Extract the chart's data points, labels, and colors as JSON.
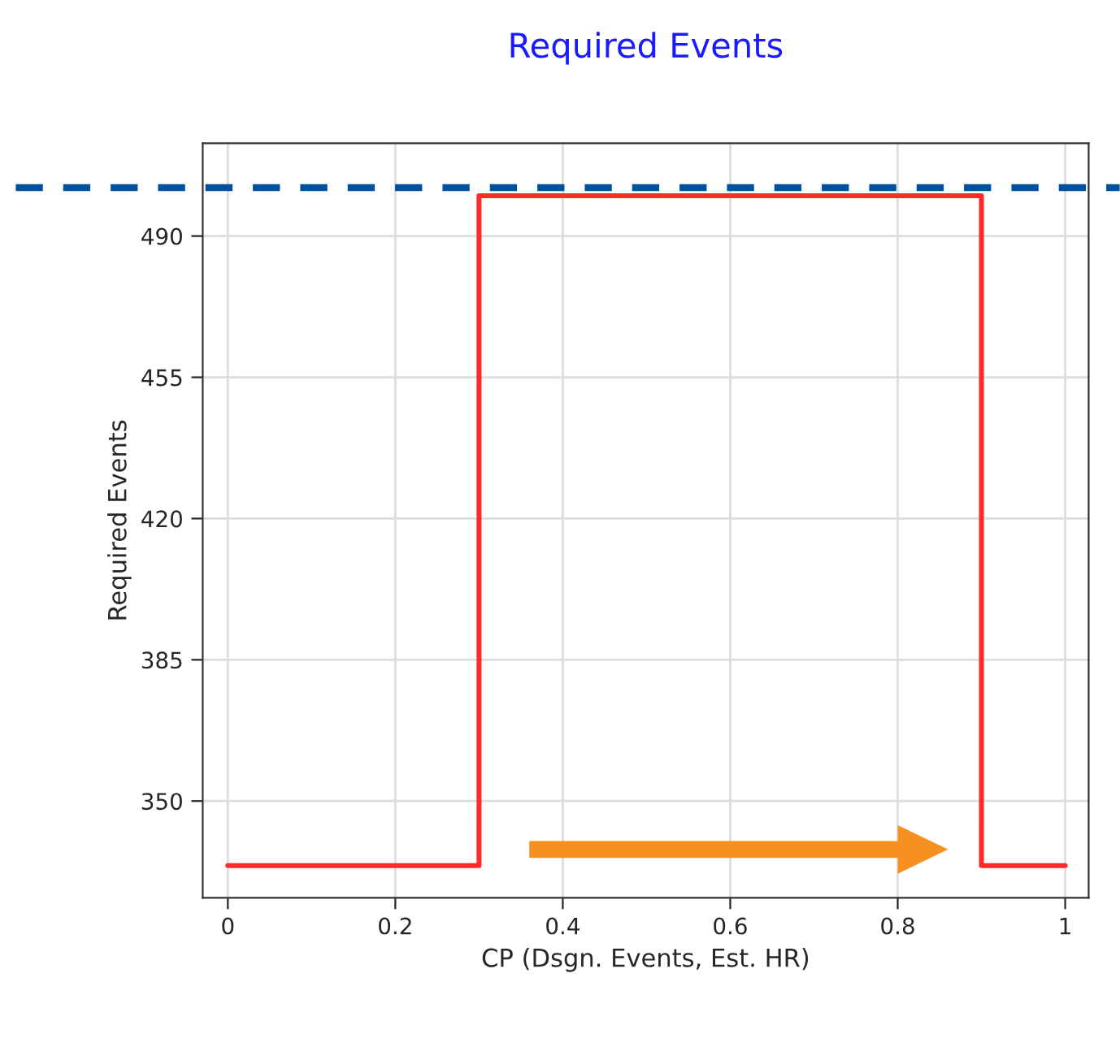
{
  "chart_data": {
    "type": "step",
    "title": "Required Events",
    "xlabel": "CP (Dsgn. Events, Est. HR)",
    "ylabel": "Required Events",
    "x": [
      0,
      0.3,
      0.9,
      1
    ],
    "series": [
      {
        "color": "#ff2a2a",
        "values": [
          334,
          500,
          334,
          334
        ]
      }
    ],
    "xlim": [
      -0.03,
      1.028
    ],
    "ylim": [
      326,
      513
    ],
    "xticks": [
      0,
      0.2,
      0.4,
      0.6,
      0.8,
      1
    ],
    "yticks": [
      350,
      385,
      420,
      455,
      490
    ],
    "ref_lines": [
      {
        "axis": "y",
        "value": 502,
        "label": null,
        "color": "#0050a0",
        "line_style": "dashed"
      }
    ],
    "grid": true,
    "line_style": "solid",
    "marker": "none"
  }
}
